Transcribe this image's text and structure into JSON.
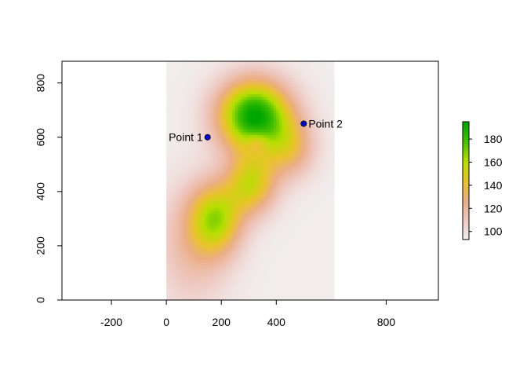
{
  "chart_data": {
    "type": "heatmap",
    "title": "",
    "xlabel": "",
    "ylabel": "",
    "xlim": [
      -380,
      990
    ],
    "ylim": [
      0,
      880
    ],
    "raster_extent": {
      "x": [
        0,
        610
      ],
      "y": [
        0,
        880
      ]
    },
    "x_ticks": [
      -200,
      0,
      200,
      400,
      800
    ],
    "x_tick_labels": [
      "-200",
      "0",
      "200",
      "400",
      "800"
    ],
    "y_ticks": [
      0,
      200,
      400,
      600,
      800
    ],
    "y_tick_labels": [
      "0",
      "200",
      "400",
      "600",
      "800"
    ],
    "points": [
      {
        "label": "Point 1",
        "x": 150,
        "y": 600,
        "label_side": "left"
      },
      {
        "label": "Point 2",
        "x": 500,
        "y": 650,
        "label_side": "right"
      }
    ],
    "point_color": "#0000CC",
    "legend": {
      "position": "right",
      "min": 93,
      "max": 195,
      "ticks": [
        100,
        120,
        140,
        160,
        180
      ],
      "tick_labels": [
        "100",
        "120",
        "140",
        "160",
        "180"
      ],
      "colors": [
        "#F2F2F2",
        "#EEC9C3",
        "#EBAD86",
        "#E9C32A",
        "#B6DF00",
        "#45C000",
        "#00A600"
      ]
    },
    "colormap": [
      "#F2F2F2",
      "#EEC9C3",
      "#EBAD86",
      "#E9C32A",
      "#B6DF00",
      "#45C000",
      "#00A600"
    ],
    "value_range": [
      93,
      195
    ],
    "field": {
      "baseline": 95,
      "blobs": [
        {
          "x": 320,
          "y": 680,
          "sx": 130,
          "sy": 130,
          "amp": 100
        },
        {
          "x": 180,
          "y": 300,
          "sx": 95,
          "sy": 130,
          "amp": 60
        },
        {
          "x": 310,
          "y": 430,
          "sx": 90,
          "sy": 110,
          "amp": 55
        },
        {
          "x": 95,
          "y": 200,
          "sx": 130,
          "sy": 220,
          "amp": 22
        },
        {
          "x": 450,
          "y": 560,
          "sx": 90,
          "sy": 110,
          "amp": 35
        },
        {
          "x": 330,
          "y": 580,
          "sx": 40,
          "sy": 40,
          "amp": -18
        }
      ]
    }
  }
}
